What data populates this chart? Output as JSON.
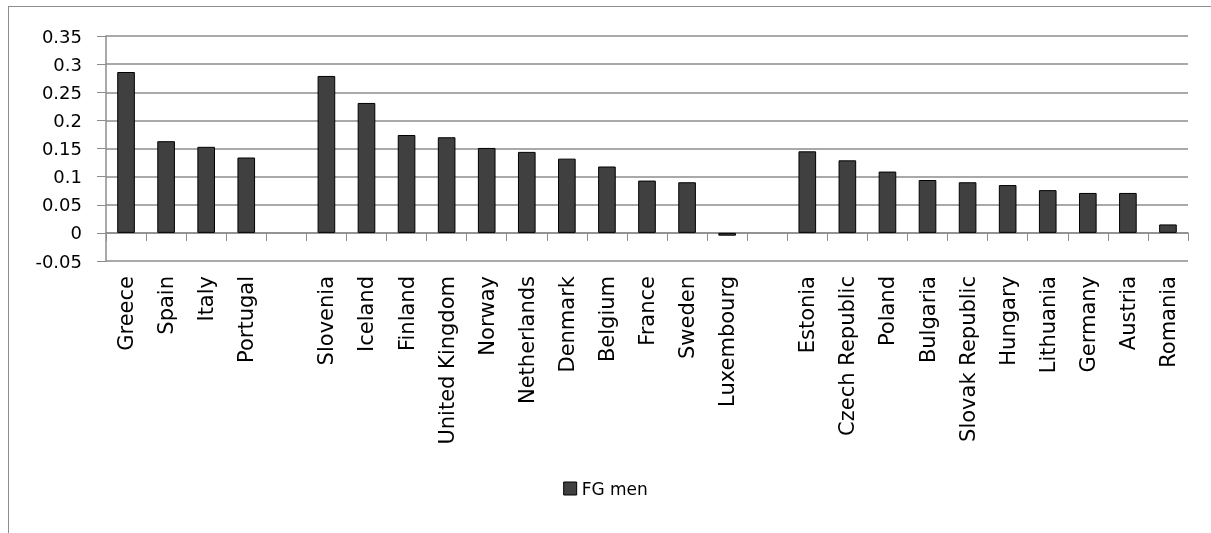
{
  "chart_data": {
    "type": "bar",
    "categories": [
      "Greece",
      "Spain",
      "Italy",
      "Portugal",
      null,
      "Slovenia",
      "Iceland",
      "Finland",
      "United Kingdom",
      "Norway",
      "Netherlands",
      "Denmark",
      "Belgium",
      "France",
      "Sweden",
      "Luxembourg",
      null,
      "Estonia",
      "Czech Republic",
      "Poland",
      "Bulgaria",
      "Slovak Republic",
      "Hungary",
      "Lithuania",
      "Germany",
      "Austria",
      "Romania"
    ],
    "series": [
      {
        "name": "FG men",
        "color": "#404040",
        "values": [
          0.286,
          0.163,
          0.153,
          0.134,
          null,
          0.279,
          0.231,
          0.174,
          0.17,
          0.151,
          0.144,
          0.132,
          0.118,
          0.093,
          0.09,
          -0.005,
          null,
          0.145,
          0.129,
          0.109,
          0.094,
          0.09,
          0.085,
          0.076,
          0.071,
          0.071,
          0.015
        ]
      }
    ],
    "ylim": [
      -0.05,
      0.35
    ],
    "yticks": [
      -0.05,
      0,
      0.05,
      0.1,
      0.15,
      0.2,
      0.25,
      0.3,
      0.35
    ],
    "grid": "y",
    "legend": "bottom"
  }
}
